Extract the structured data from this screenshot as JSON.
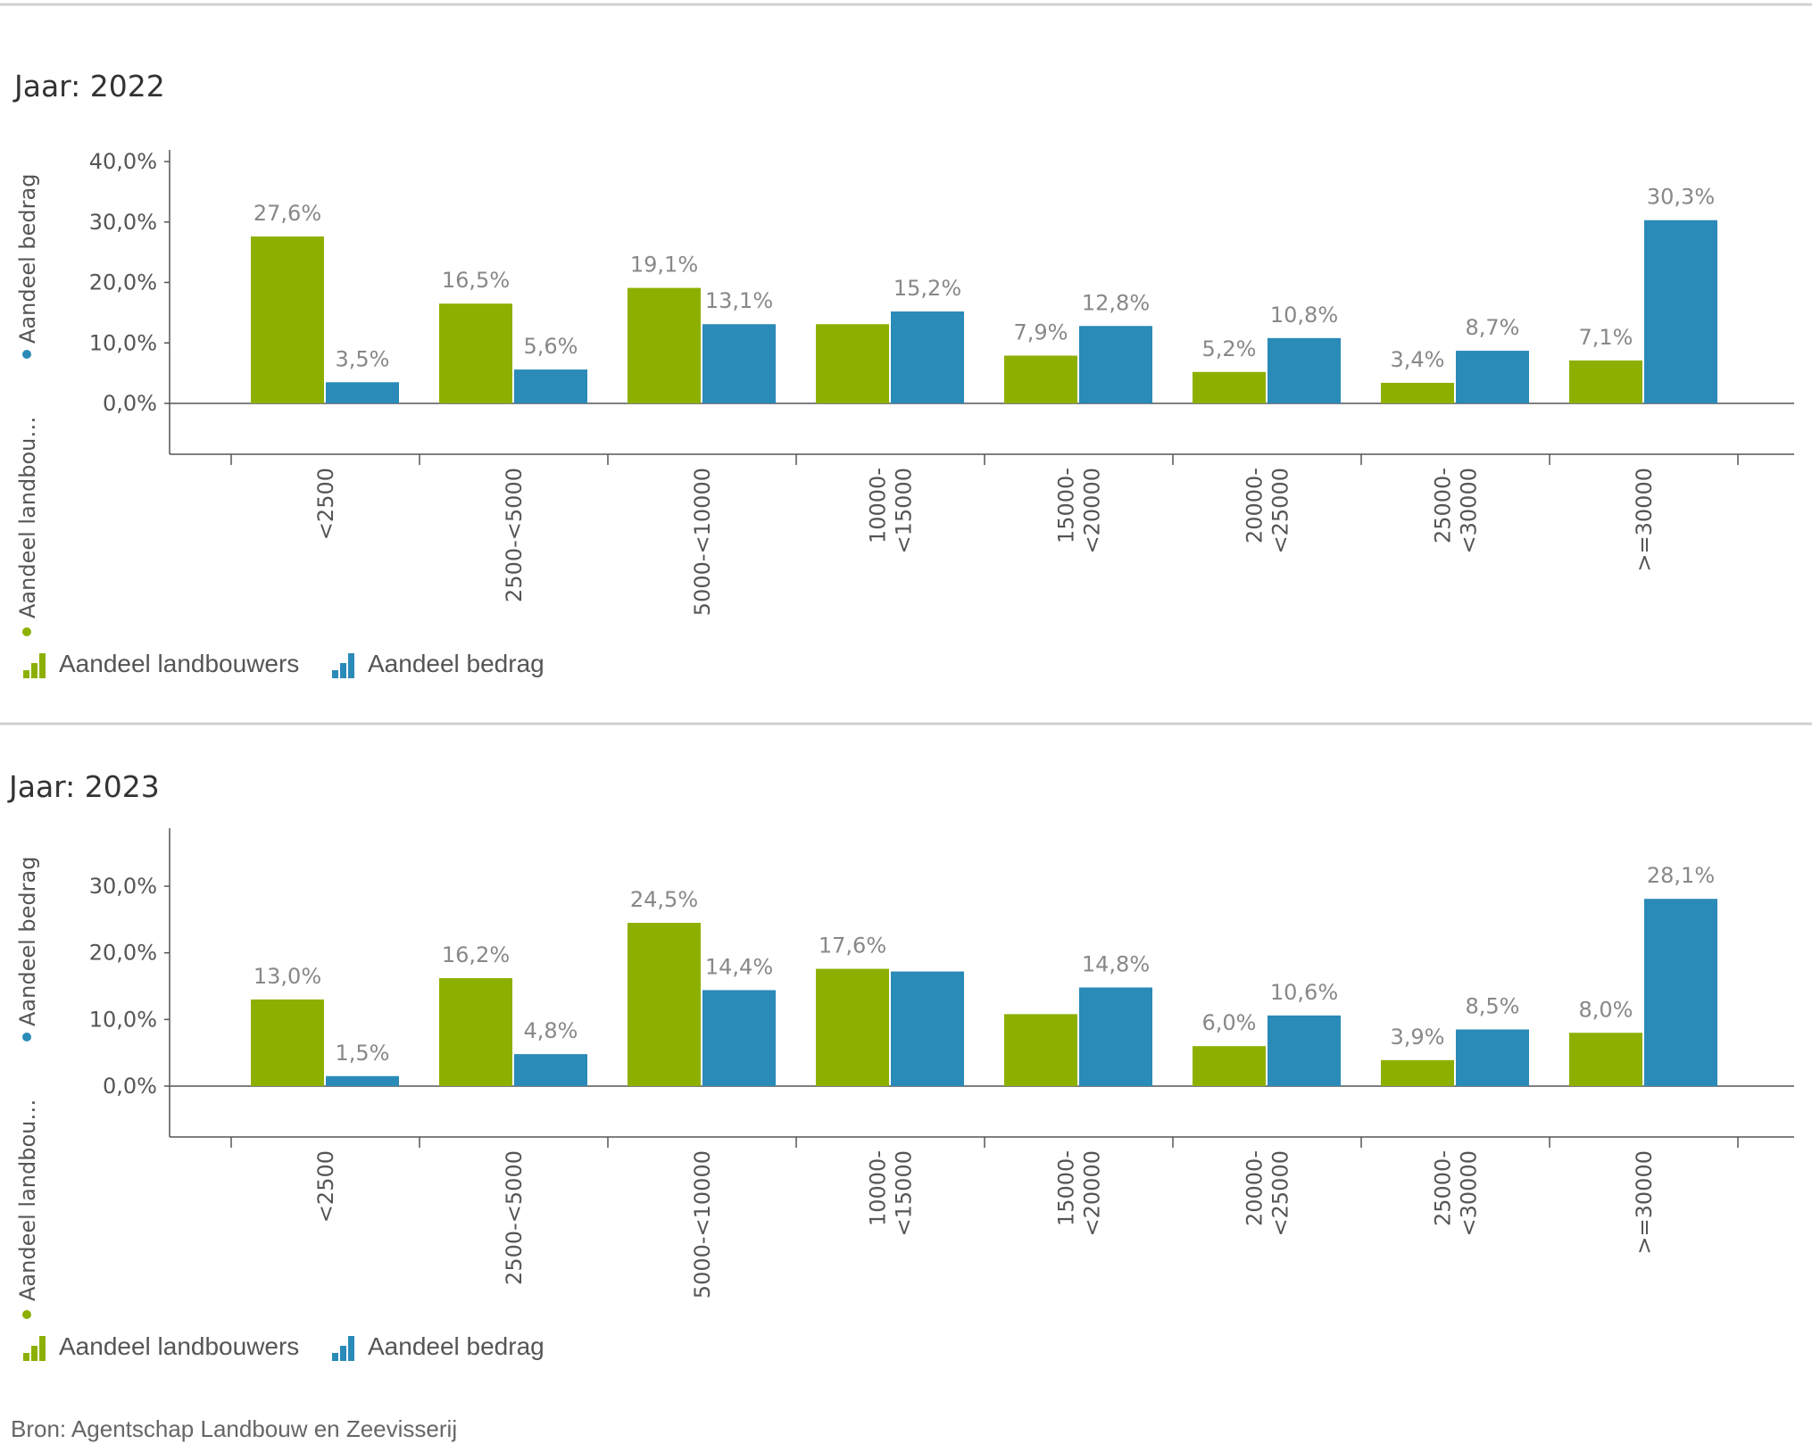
{
  "colors": {
    "landbouwers": "#8DB000",
    "bedrag": "#2A8AB8",
    "axis": "#555555",
    "separator": "#d0d0d0"
  },
  "legend": {
    "series1": "Aandeel landbouwers",
    "series2": "Aandeel bedrag",
    "icon": "bar-chart-icon"
  },
  "y_axis_title": {
    "series1": "Aandeel landbou…",
    "series2": "Aandeel bedrag"
  },
  "source": "Bron: Agentschap Landbouw en Zeevisserij",
  "chart_data": [
    {
      "type": "bar",
      "title": "Jaar: 2022",
      "categories": [
        [
          "<2500"
        ],
        [
          "2500-<5000"
        ],
        [
          "5000-<10000"
        ],
        [
          "10000-",
          "<15000"
        ],
        [
          "15000-",
          "<20000"
        ],
        [
          "20000-",
          "<25000"
        ],
        [
          "25000-",
          "<30000"
        ],
        [
          ">=30000"
        ]
      ],
      "series": [
        {
          "name": "Aandeel landbouwers",
          "values": [
            27.6,
            16.5,
            19.1,
            13.1,
            7.9,
            5.2,
            3.4,
            7.1
          ],
          "labels": [
            "27,6%",
            "16,5%",
            "19,1%",
            "",
            "7,9%",
            "5,2%",
            "3,4%",
            "7,1%"
          ]
        },
        {
          "name": "Aandeel bedrag",
          "values": [
            3.5,
            5.6,
            13.1,
            15.2,
            12.8,
            10.8,
            8.7,
            30.3
          ],
          "labels": [
            "3,5%",
            "5,6%",
            "13,1%",
            "15,2%",
            "12,8%",
            "10,8%",
            "8,7%",
            "30,3%"
          ]
        }
      ],
      "yticks": [
        0,
        10,
        20,
        30,
        40
      ],
      "ytick_labels": [
        "0,0%",
        "10,0%",
        "20,0%",
        "30,0%",
        "40,0%"
      ],
      "ylim": [
        -8.3,
        41.0
      ]
    },
    {
      "type": "bar",
      "title": "Jaar: 2023",
      "categories": [
        [
          "<2500"
        ],
        [
          "2500-<5000"
        ],
        [
          "5000-<10000"
        ],
        [
          "10000-",
          "<15000"
        ],
        [
          "15000-",
          "<20000"
        ],
        [
          "20000-",
          "<25000"
        ],
        [
          "25000-",
          "<30000"
        ],
        [
          ">=30000"
        ]
      ],
      "series": [
        {
          "name": "Aandeel landbouwers",
          "values": [
            13.0,
            16.2,
            24.5,
            17.6,
            10.8,
            6.0,
            3.9,
            8.0
          ],
          "labels": [
            "13,0%",
            "16,2%",
            "24,5%",
            "17,6%",
            "",
            "6,0%",
            "3,9%",
            "8,0%"
          ]
        },
        {
          "name": "Aandeel bedrag",
          "values": [
            1.5,
            4.8,
            14.4,
            17.2,
            14.8,
            10.6,
            8.5,
            28.1
          ],
          "labels": [
            "1,5%",
            "4,8%",
            "14,4%",
            "",
            "14,8%",
            "10,6%",
            "8,5%",
            "28,1%"
          ]
        }
      ],
      "yticks": [
        0,
        10,
        20,
        30
      ],
      "ytick_labels": [
        "0,0%",
        "10,0%",
        "20,0%",
        "30,0%"
      ],
      "ylim": [
        -7.5,
        38.2
      ]
    }
  ]
}
